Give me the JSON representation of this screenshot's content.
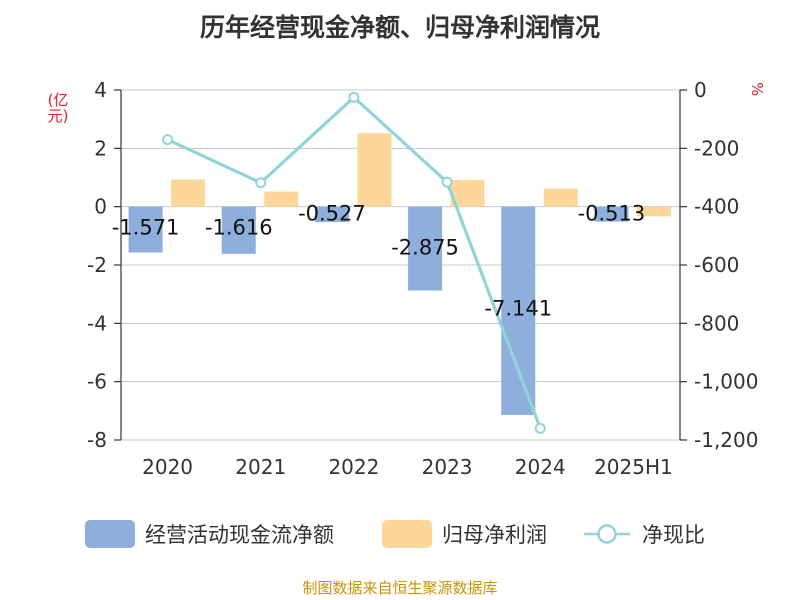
{
  "page": {
    "title": "历年经营现金净额、归母净利润情况",
    "footer": "制图数据来自恒生聚源数据库"
  },
  "chart_data": {
    "type": "bar",
    "title": "历年经营现金净额、归母净利润情况",
    "categories": [
      "2020",
      "2021",
      "2022",
      "2023",
      "2024",
      "2025H1"
    ],
    "y_left": {
      "unit_label": "(亿元)",
      "range": [
        -8,
        4
      ],
      "ticks": [
        4,
        2,
        0,
        -2,
        -4,
        -6,
        -8
      ]
    },
    "y_right": {
      "unit_label": "%",
      "range": [
        -1200,
        0
      ],
      "ticks": [
        0,
        -200,
        -400,
        -600,
        -800,
        -1000,
        -1200
      ],
      "tick_labels": [
        "0",
        "-200",
        "-400",
        "-600",
        "-800",
        "-1,000",
        "-1,200"
      ]
    },
    "series": [
      {
        "name": "经营活动现金流净额",
        "kind": "bar",
        "axis": "left",
        "color": "#8eaedb",
        "values": [
          -1.571,
          -1.616,
          -0.527,
          -2.875,
          -7.141,
          -0.513
        ],
        "labels": [
          "-1.571",
          "-1.616",
          "-0.527",
          "-2.875",
          "-7.141",
          "-0.513"
        ]
      },
      {
        "name": "归母净利润",
        "kind": "bar",
        "axis": "left",
        "color": "#fdd699",
        "values": [
          0.93,
          0.52,
          2.52,
          0.92,
          0.62,
          -0.33
        ]
      },
      {
        "name": "净现比",
        "kind": "line",
        "axis": "right",
        "color": "#8fd4d8",
        "values": [
          -170,
          -318,
          -25,
          -316,
          -1160,
          null
        ]
      }
    ],
    "grid": true,
    "legend_position": "bottom"
  },
  "legend": [
    {
      "label": "经营活动现金流净额",
      "icon": "bar-swatch",
      "color": "#8eaedb"
    },
    {
      "label": "归母净利润",
      "icon": "bar-swatch",
      "color": "#fdd699"
    },
    {
      "label": "净现比",
      "icon": "line-circle",
      "color": "#8fd4d8"
    }
  ]
}
